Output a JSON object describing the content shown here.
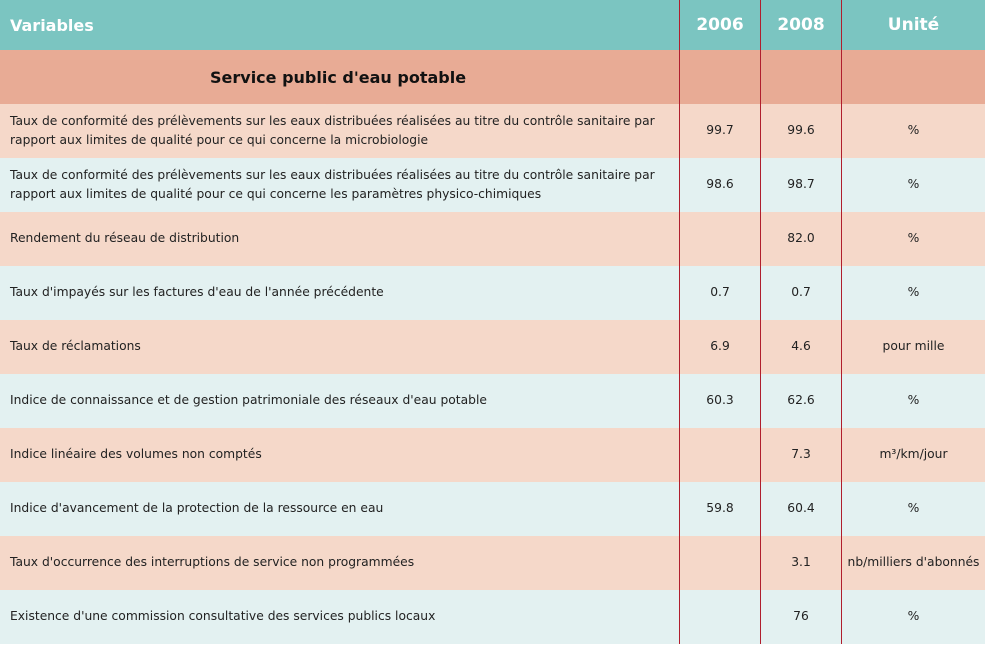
{
  "header": {
    "variables": "Variables",
    "y2006": "2006",
    "y2008": "2008",
    "unit": "Unité"
  },
  "section": {
    "title": "Service public d'eau potable"
  },
  "rows": [
    {
      "variable": "Taux de conformité des prélèvements sur les eaux distribuées réalisées au titre du contrôle sanitaire par rapport aux limites de qualité pour ce qui concerne la microbiologie",
      "v2006": "99.7",
      "v2008": "99.6",
      "unit": "%"
    },
    {
      "variable": "Taux de conformité des prélèvements sur les eaux distribuées réalisées au titre du contrôle sanitaire par rapport aux limites de qualité pour ce qui concerne les paramètres physico-chimiques",
      "v2006": "98.6",
      "v2008": "98.7",
      "unit": "%"
    },
    {
      "variable": "Rendement du réseau de distribution",
      "v2006": "",
      "v2008": "82.0",
      "unit": "%"
    },
    {
      "variable": "Taux d'impayés sur les factures d'eau de l'année précédente",
      "v2006": "0.7",
      "v2008": "0.7",
      "unit": "%"
    },
    {
      "variable": "Taux de réclamations",
      "v2006": "6.9",
      "v2008": "4.6",
      "unit": "pour mille"
    },
    {
      "variable": "Indice de connaissance et de gestion patrimoniale des réseaux d'eau potable",
      "v2006": "60.3",
      "v2008": "62.6",
      "unit": "%"
    },
    {
      "variable": "Indice linéaire des volumes non comptés",
      "v2006": "",
      "v2008": "7.3",
      "unit": "m³/km/jour"
    },
    {
      "variable": "Indice d'avancement de la protection de la ressource en eau",
      "v2006": "59.8",
      "v2008": "60.4",
      "unit": "%"
    },
    {
      "variable": "Taux d'occurrence des interruptions de service non programmées",
      "v2006": "",
      "v2008": "3.1",
      "unit": "nb/milliers d'abonnés"
    },
    {
      "variable": "Existence d'une commission consultative des services publics locaux",
      "v2006": "",
      "v2008": "76",
      "unit": "%"
    }
  ]
}
